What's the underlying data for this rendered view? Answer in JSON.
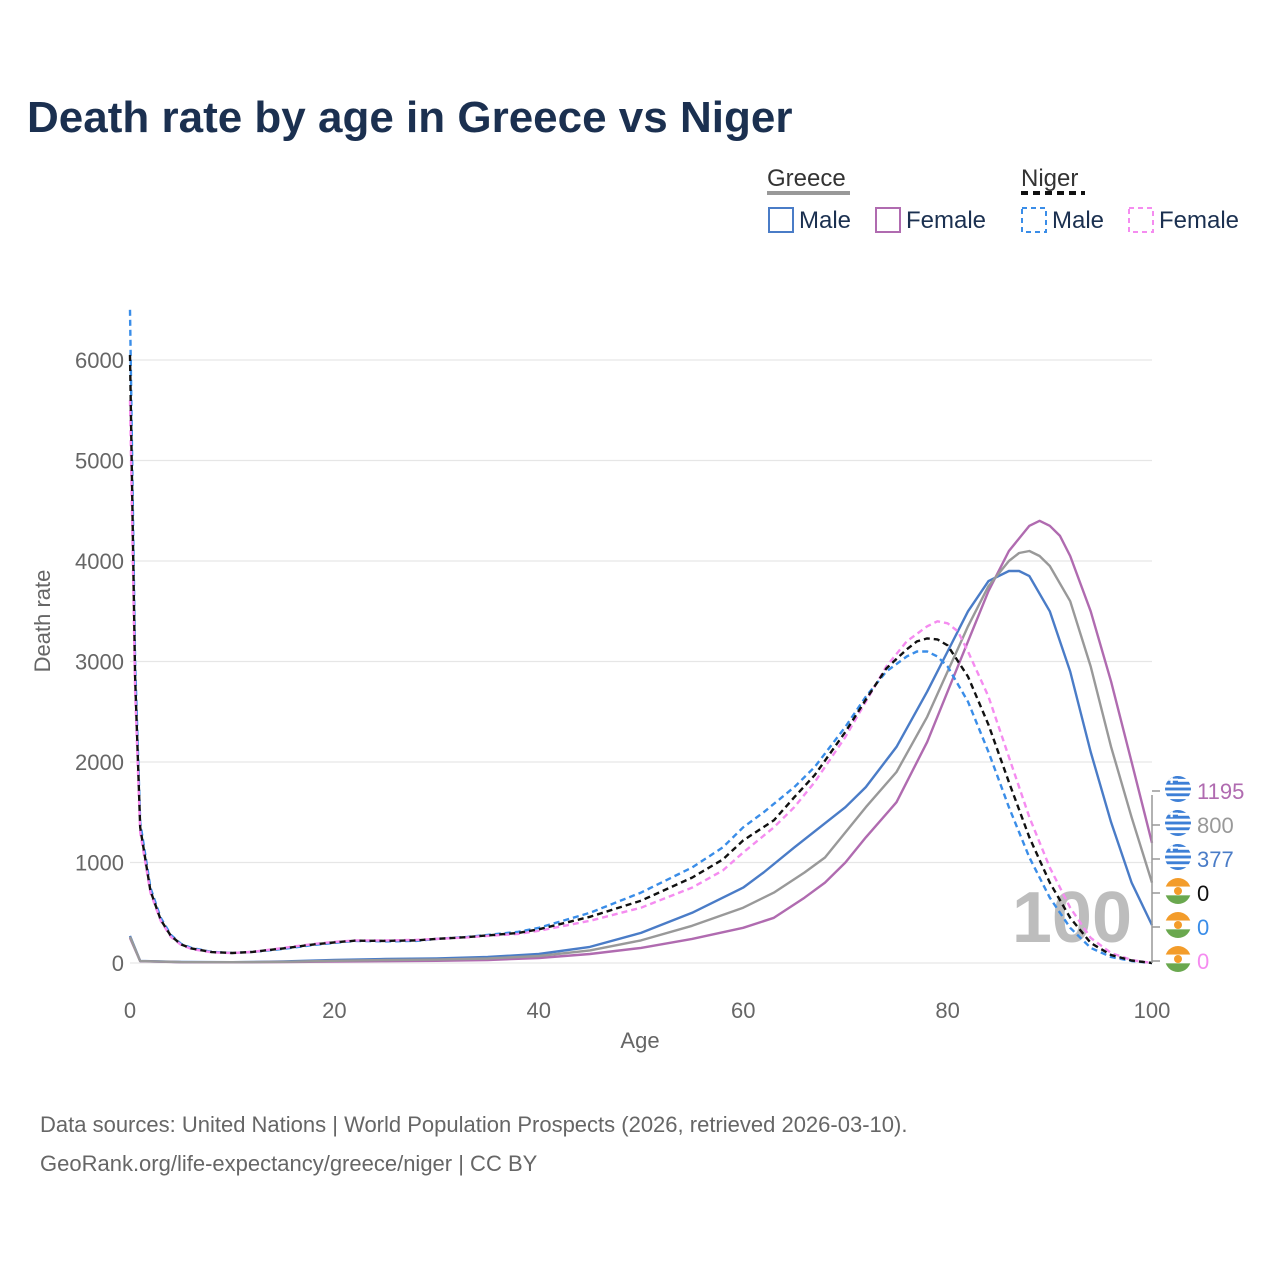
{
  "colors": {
    "greece_male": "#4a7cc7",
    "greece_female": "#b06bb0",
    "greece_total": "#999999",
    "niger_male": "#3a8de8",
    "niger_female": "#f58cf0",
    "niger_total": "#111111",
    "title": "#1b3050",
    "grid": "#e6e6e6",
    "text": "#666666"
  },
  "chart_data": {
    "type": "line",
    "title": "Death rate by age in Greece vs Niger",
    "xlabel": "Age",
    "ylabel": "Death rate",
    "xlim": [
      0,
      100
    ],
    "ylim": [
      0,
      6000
    ],
    "x_ticks": [
      "0",
      "20",
      "40",
      "60",
      "80",
      "100"
    ],
    "y_ticks": [
      "0",
      "1000",
      "2000",
      "3000",
      "4000",
      "5000",
      "6000"
    ],
    "grid": true,
    "legend": {
      "position": "top-right",
      "groups": [
        {
          "name": "Greece",
          "items": [
            "Male",
            "Female"
          ]
        },
        {
          "name": "Niger",
          "items": [
            "Male",
            "Female"
          ]
        }
      ]
    },
    "watermark": "100",
    "end_labels": [
      "1195",
      "800",
      "377",
      "0",
      "0",
      "0"
    ],
    "series": [
      {
        "name": "Greece Male",
        "country": "Greece",
        "style": "solid",
        "points": [
          [
            0,
            270
          ],
          [
            1,
            20
          ],
          [
            5,
            10
          ],
          [
            10,
            8
          ],
          [
            15,
            15
          ],
          [
            20,
            30
          ],
          [
            25,
            40
          ],
          [
            30,
            45
          ],
          [
            35,
            60
          ],
          [
            40,
            90
          ],
          [
            45,
            160
          ],
          [
            50,
            300
          ],
          [
            55,
            500
          ],
          [
            60,
            750
          ],
          [
            62,
            900
          ],
          [
            65,
            1150
          ],
          [
            70,
            1550
          ],
          [
            72,
            1750
          ],
          [
            75,
            2150
          ],
          [
            78,
            2700
          ],
          [
            80,
            3100
          ],
          [
            82,
            3500
          ],
          [
            84,
            3800
          ],
          [
            86,
            3900
          ],
          [
            87,
            3900
          ],
          [
            88,
            3850
          ],
          [
            90,
            3500
          ],
          [
            92,
            2900
          ],
          [
            94,
            2100
          ],
          [
            96,
            1400
          ],
          [
            98,
            800
          ],
          [
            100,
            377
          ]
        ]
      },
      {
        "name": "Greece Female",
        "country": "Greece",
        "style": "solid",
        "points": [
          [
            0,
            250
          ],
          [
            1,
            18
          ],
          [
            5,
            8
          ],
          [
            10,
            7
          ],
          [
            15,
            10
          ],
          [
            20,
            15
          ],
          [
            25,
            18
          ],
          [
            30,
            22
          ],
          [
            35,
            30
          ],
          [
            40,
            50
          ],
          [
            45,
            90
          ],
          [
            50,
            150
          ],
          [
            55,
            240
          ],
          [
            60,
            350
          ],
          [
            63,
            450
          ],
          [
            66,
            650
          ],
          [
            68,
            800
          ],
          [
            70,
            1000
          ],
          [
            72,
            1250
          ],
          [
            75,
            1600
          ],
          [
            78,
            2200
          ],
          [
            80,
            2700
          ],
          [
            82,
            3200
          ],
          [
            84,
            3700
          ],
          [
            86,
            4100
          ],
          [
            88,
            4350
          ],
          [
            89,
            4400
          ],
          [
            90,
            4350
          ],
          [
            91,
            4250
          ],
          [
            92,
            4050
          ],
          [
            94,
            3500
          ],
          [
            96,
            2800
          ],
          [
            98,
            2000
          ],
          [
            100,
            1195
          ]
        ]
      },
      {
        "name": "Greece Total",
        "country": "Greece",
        "style": "solid",
        "points": [
          [
            0,
            260
          ],
          [
            1,
            19
          ],
          [
            5,
            9
          ],
          [
            10,
            8
          ],
          [
            15,
            12
          ],
          [
            20,
            22
          ],
          [
            25,
            30
          ],
          [
            30,
            34
          ],
          [
            35,
            45
          ],
          [
            40,
            70
          ],
          [
            45,
            125
          ],
          [
            50,
            225
          ],
          [
            55,
            370
          ],
          [
            60,
            550
          ],
          [
            63,
            700
          ],
          [
            66,
            900
          ],
          [
            68,
            1050
          ],
          [
            70,
            1300
          ],
          [
            72,
            1550
          ],
          [
            75,
            1900
          ],
          [
            78,
            2450
          ],
          [
            80,
            2900
          ],
          [
            82,
            3350
          ],
          [
            84,
            3750
          ],
          [
            86,
            4000
          ],
          [
            87,
            4080
          ],
          [
            88,
            4100
          ],
          [
            89,
            4050
          ],
          [
            90,
            3950
          ],
          [
            92,
            3600
          ],
          [
            94,
            2950
          ],
          [
            96,
            2150
          ],
          [
            98,
            1450
          ],
          [
            100,
            800
          ]
        ]
      },
      {
        "name": "Niger Male",
        "country": "Niger",
        "style": "dashed",
        "points": [
          [
            0,
            6500
          ],
          [
            0.5,
            3000
          ],
          [
            1,
            1400
          ],
          [
            2,
            750
          ],
          [
            3,
            450
          ],
          [
            4,
            280
          ],
          [
            5,
            190
          ],
          [
            6,
            150
          ],
          [
            8,
            110
          ],
          [
            10,
            100
          ],
          [
            12,
            110
          ],
          [
            15,
            140
          ],
          [
            18,
            180
          ],
          [
            20,
            200
          ],
          [
            22,
            220
          ],
          [
            25,
            215
          ],
          [
            28,
            220
          ],
          [
            30,
            240
          ],
          [
            33,
            260
          ],
          [
            35,
            280
          ],
          [
            38,
            310
          ],
          [
            40,
            350
          ],
          [
            45,
            500
          ],
          [
            50,
            700
          ],
          [
            55,
            950
          ],
          [
            58,
            1150
          ],
          [
            60,
            1350
          ],
          [
            62,
            1500
          ],
          [
            65,
            1750
          ],
          [
            67,
            1950
          ],
          [
            70,
            2350
          ],
          [
            72,
            2650
          ],
          [
            74,
            2900
          ],
          [
            76,
            3050
          ],
          [
            77,
            3100
          ],
          [
            78,
            3100
          ],
          [
            79,
            3050
          ],
          [
            80,
            2950
          ],
          [
            82,
            2600
          ],
          [
            84,
            2100
          ],
          [
            86,
            1550
          ],
          [
            88,
            1050
          ],
          [
            90,
            650
          ],
          [
            92,
            350
          ],
          [
            94,
            150
          ],
          [
            96,
            60
          ],
          [
            98,
            20
          ],
          [
            100,
            0
          ]
        ]
      },
      {
        "name": "Niger Female",
        "country": "Niger",
        "style": "dashed",
        "points": [
          [
            0,
            5600
          ],
          [
            0.5,
            2700
          ],
          [
            1,
            1300
          ],
          [
            2,
            700
          ],
          [
            3,
            420
          ],
          [
            4,
            260
          ],
          [
            5,
            180
          ],
          [
            6,
            140
          ],
          [
            8,
            105
          ],
          [
            10,
            100
          ],
          [
            12,
            110
          ],
          [
            15,
            150
          ],
          [
            18,
            190
          ],
          [
            20,
            210
          ],
          [
            22,
            225
          ],
          [
            25,
            225
          ],
          [
            28,
            230
          ],
          [
            30,
            240
          ],
          [
            33,
            255
          ],
          [
            35,
            270
          ],
          [
            38,
            290
          ],
          [
            40,
            320
          ],
          [
            45,
            420
          ],
          [
            50,
            550
          ],
          [
            55,
            750
          ],
          [
            58,
            920
          ],
          [
            60,
            1100
          ],
          [
            63,
            1350
          ],
          [
            65,
            1550
          ],
          [
            67,
            1800
          ],
          [
            70,
            2250
          ],
          [
            72,
            2600
          ],
          [
            74,
            2950
          ],
          [
            76,
            3200
          ],
          [
            78,
            3350
          ],
          [
            79,
            3400
          ],
          [
            80,
            3380
          ],
          [
            81,
            3300
          ],
          [
            82,
            3100
          ],
          [
            84,
            2650
          ],
          [
            86,
            2050
          ],
          [
            88,
            1450
          ],
          [
            90,
            950
          ],
          [
            92,
            550
          ],
          [
            94,
            250
          ],
          [
            96,
            100
          ],
          [
            98,
            30
          ],
          [
            100,
            0
          ]
        ]
      },
      {
        "name": "Niger Total",
        "country": "Niger",
        "style": "dashed",
        "points": [
          [
            0,
            6050
          ],
          [
            0.5,
            2850
          ],
          [
            1,
            1350
          ],
          [
            2,
            720
          ],
          [
            3,
            430
          ],
          [
            4,
            270
          ],
          [
            5,
            185
          ],
          [
            6,
            145
          ],
          [
            8,
            108
          ],
          [
            10,
            100
          ],
          [
            12,
            110
          ],
          [
            15,
            145
          ],
          [
            18,
            185
          ],
          [
            20,
            205
          ],
          [
            22,
            222
          ],
          [
            25,
            220
          ],
          [
            28,
            225
          ],
          [
            30,
            240
          ],
          [
            33,
            258
          ],
          [
            35,
            275
          ],
          [
            38,
            300
          ],
          [
            40,
            335
          ],
          [
            45,
            460
          ],
          [
            50,
            620
          ],
          [
            55,
            850
          ],
          [
            58,
            1030
          ],
          [
            60,
            1220
          ],
          [
            63,
            1420
          ],
          [
            65,
            1650
          ],
          [
            67,
            1870
          ],
          [
            70,
            2300
          ],
          [
            72,
            2620
          ],
          [
            74,
            2930
          ],
          [
            76,
            3120
          ],
          [
            77,
            3200
          ],
          [
            78,
            3230
          ],
          [
            79,
            3220
          ],
          [
            80,
            3160
          ],
          [
            82,
            2850
          ],
          [
            84,
            2370
          ],
          [
            86,
            1800
          ],
          [
            88,
            1250
          ],
          [
            90,
            800
          ],
          [
            92,
            450
          ],
          [
            94,
            200
          ],
          [
            96,
            80
          ],
          [
            98,
            25
          ],
          [
            100,
            0
          ]
        ]
      }
    ]
  },
  "source": {
    "line1": "Data sources: United Nations | World Population Prospects (2026, retrieved 2026-03-10).",
    "line2": "GeoRank.org/life-expectancy/greece/niger | CC BY"
  }
}
